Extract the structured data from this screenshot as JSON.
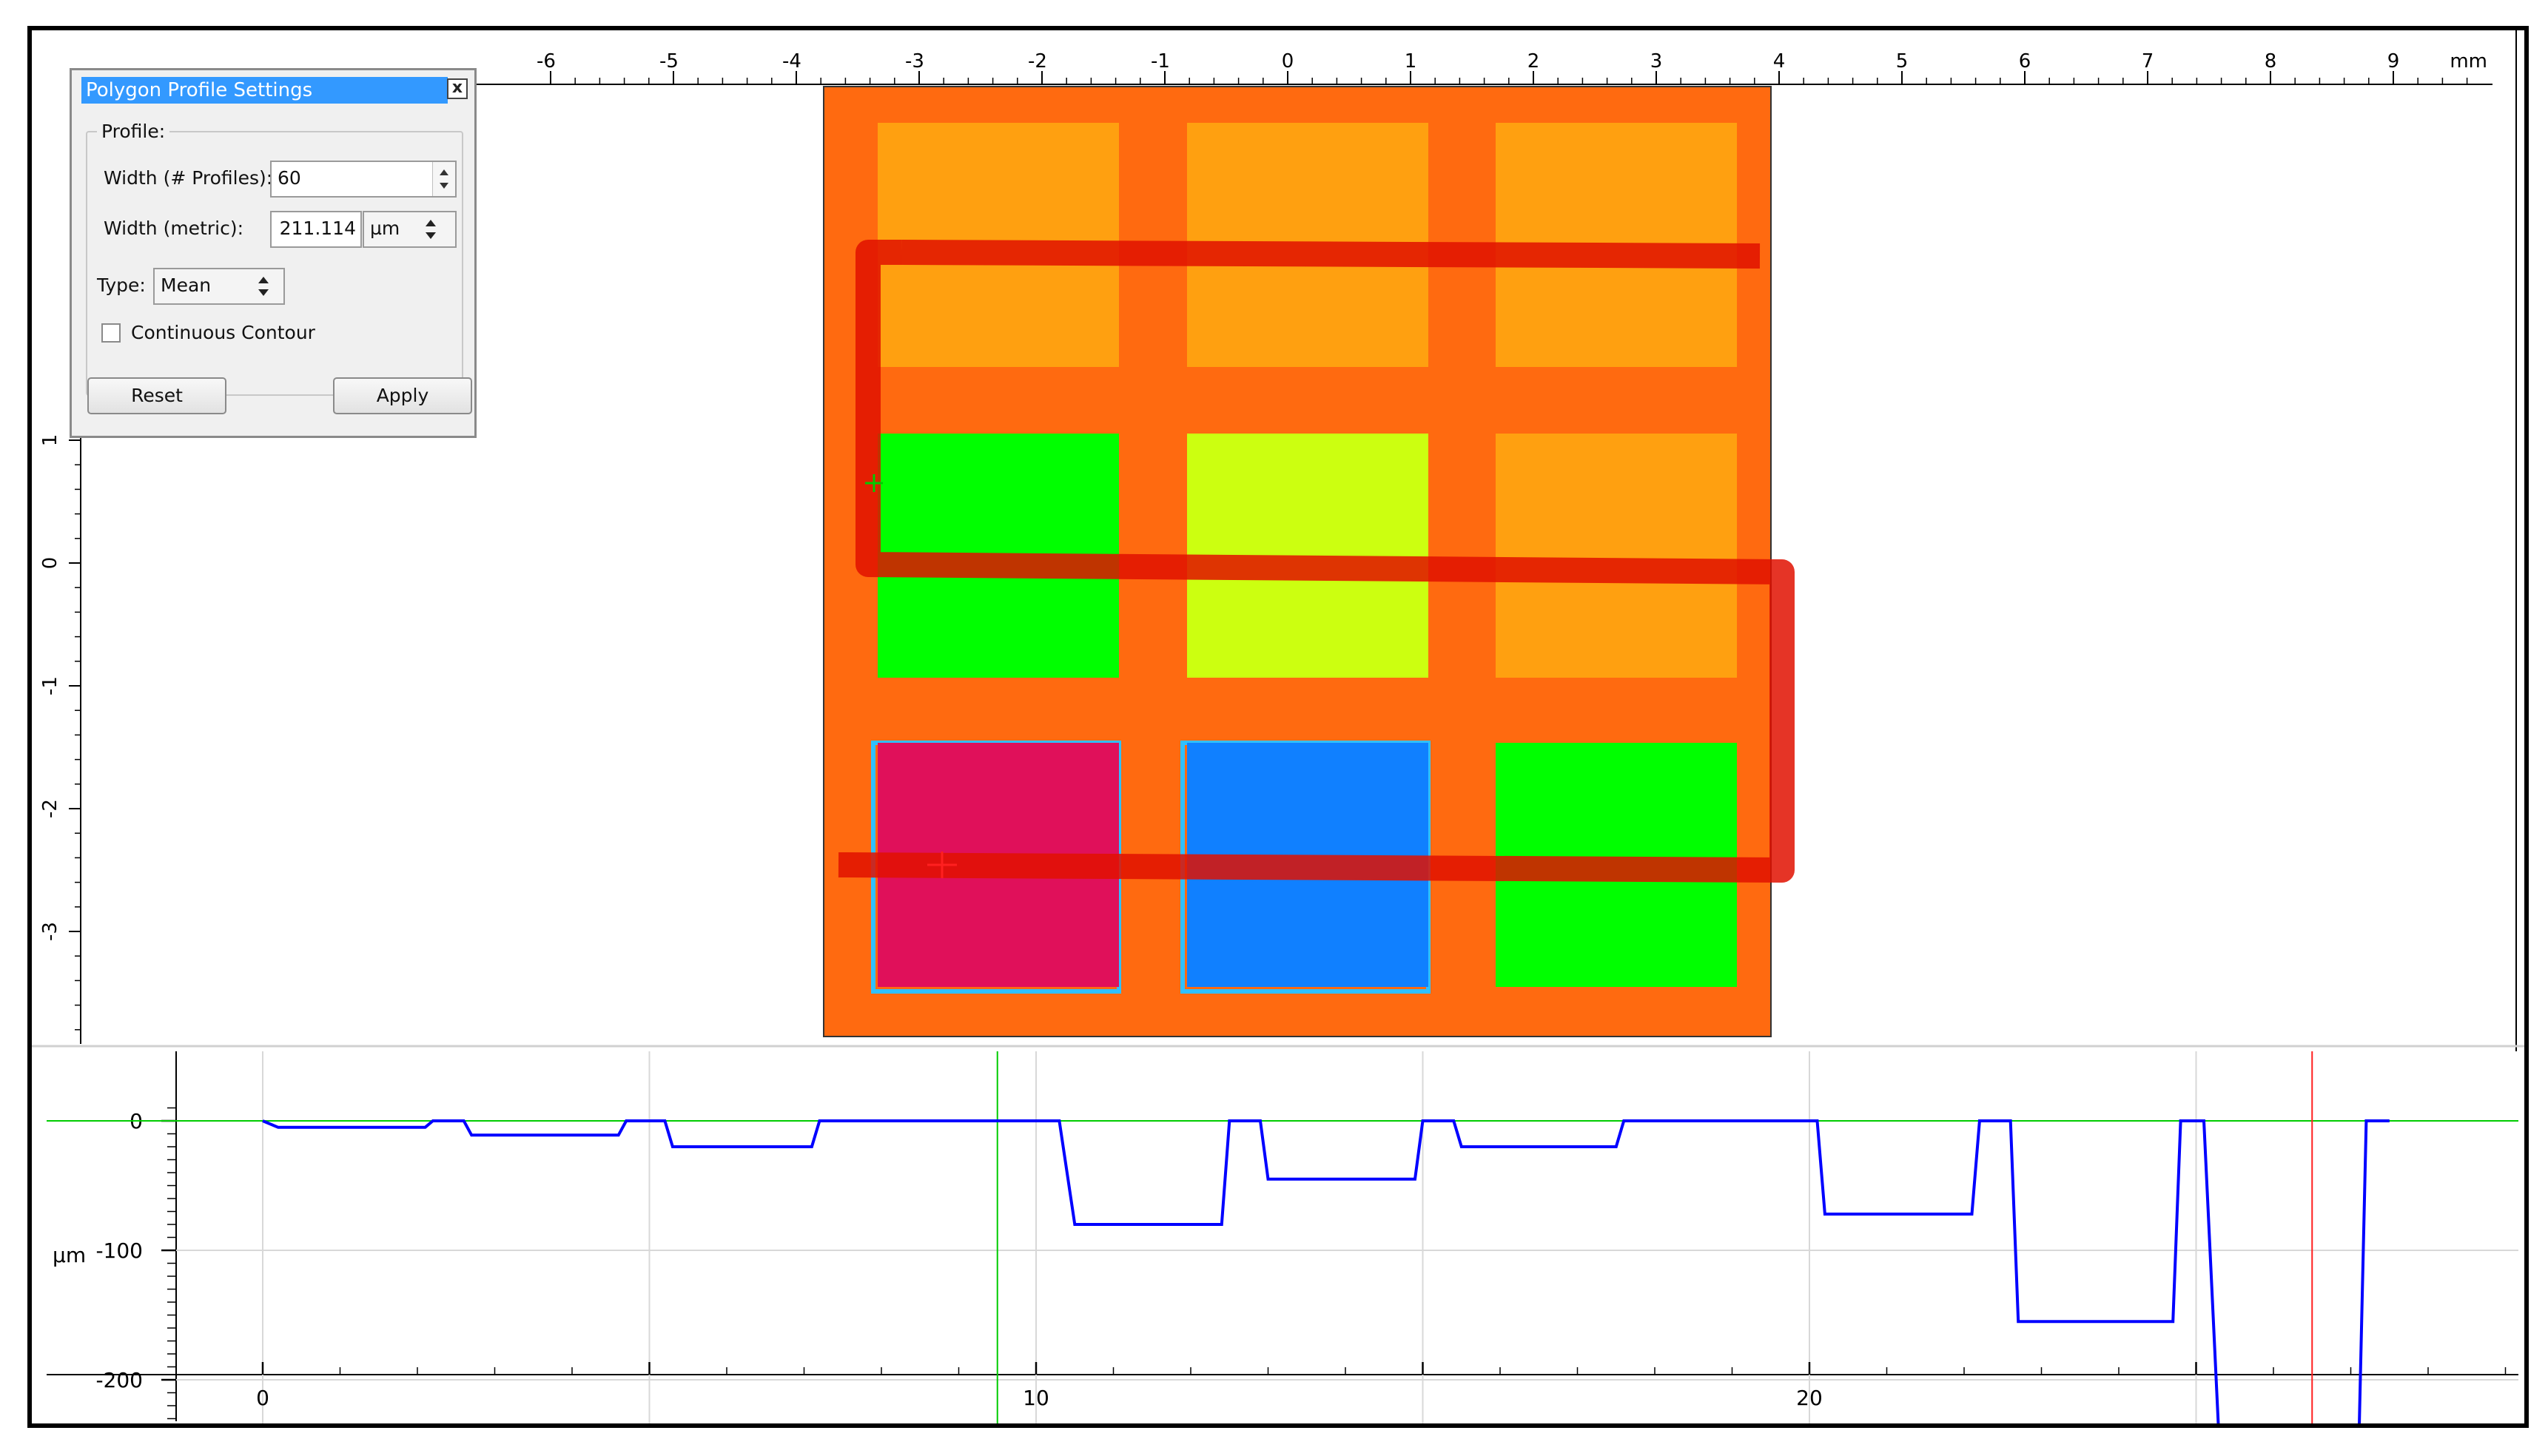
{
  "dialog": {
    "title": "Polygon Profile Settings",
    "close_glyph": "x",
    "group_title": "Profile:",
    "width_profiles_label": "Width (# Profiles):",
    "width_profiles_value": "60",
    "width_metric_label": "Width (metric):",
    "width_metric_value": "211.114",
    "width_metric_unit": "µm",
    "type_label": "Type:",
    "type_value": "Mean",
    "continuous_contour_label": "Continuous Contour",
    "continuous_contour_checked": false,
    "reset_label": "Reset",
    "apply_label": "Apply"
  },
  "image_view": {
    "x_unit": "mm",
    "x_ticks": [
      "-6",
      "-5",
      "-4",
      "-3",
      "-2",
      "-1",
      "0",
      "1",
      "2",
      "3",
      "4",
      "5",
      "6",
      "7",
      "8",
      "9"
    ],
    "y_ticks": [
      "1",
      "0",
      "-1",
      "-2",
      "-3"
    ],
    "colors": {
      "background": "#ff6a10",
      "orange_pad": "#ffa010",
      "green_pad": "#00ff00",
      "yellow_green_pad": "#ccff10",
      "magenta_pad": "#e0105a",
      "blue_pad": "#1080ff",
      "polygon_path": "#e01000"
    },
    "pads": [
      [
        "orange",
        "orange",
        "orange"
      ],
      [
        "green",
        "yellow-green",
        "orange"
      ],
      [
        "magenta",
        "blue",
        "green"
      ]
    ]
  },
  "profile_chart": {
    "y_unit_label": "µm",
    "y_ticks": [
      "0",
      "-100",
      "-200"
    ],
    "x_ticks": [
      "0",
      "10",
      "20"
    ],
    "line_color": "#0000ff",
    "zero_line_color": "#00cc00",
    "cursor_color": "#ff2020",
    "cursors": {
      "green_x": 9.5,
      "red_x": 26.5,
      "red_y": -255
    },
    "chart_data": {
      "type": "line",
      "xlabel": "",
      "ylabel": "µm",
      "xlim": [
        -1.5,
        29.5
      ],
      "ylim": [
        -260,
        15
      ],
      "series": [
        {
          "x": [
            0,
            0.2,
            2.1,
            2.2,
            2.6,
            2.7,
            4.6,
            4.7,
            5.2,
            5.3,
            7.1,
            7.2,
            10.3,
            10.5,
            12.4,
            12.5,
            12.9,
            13.0,
            14.9,
            15.0,
            15.4,
            15.5,
            17.5,
            17.6,
            20.1,
            20.2,
            22.1,
            22.2,
            22.6,
            22.7,
            24.7,
            24.8,
            25.1,
            25.3,
            25.5,
            27.1,
            27.2,
            27.5
          ],
          "y": [
            0,
            -5,
            -5,
            0,
            0,
            -11,
            -11,
            0,
            0,
            -20,
            -20,
            0,
            0,
            -80,
            -80,
            0,
            0,
            -45,
            -45,
            0,
            0,
            -20,
            -20,
            0,
            0,
            -72,
            -72,
            0,
            0,
            -155,
            -155,
            0,
            0,
            -250,
            -260,
            -260,
            0,
            0
          ]
        }
      ]
    }
  }
}
